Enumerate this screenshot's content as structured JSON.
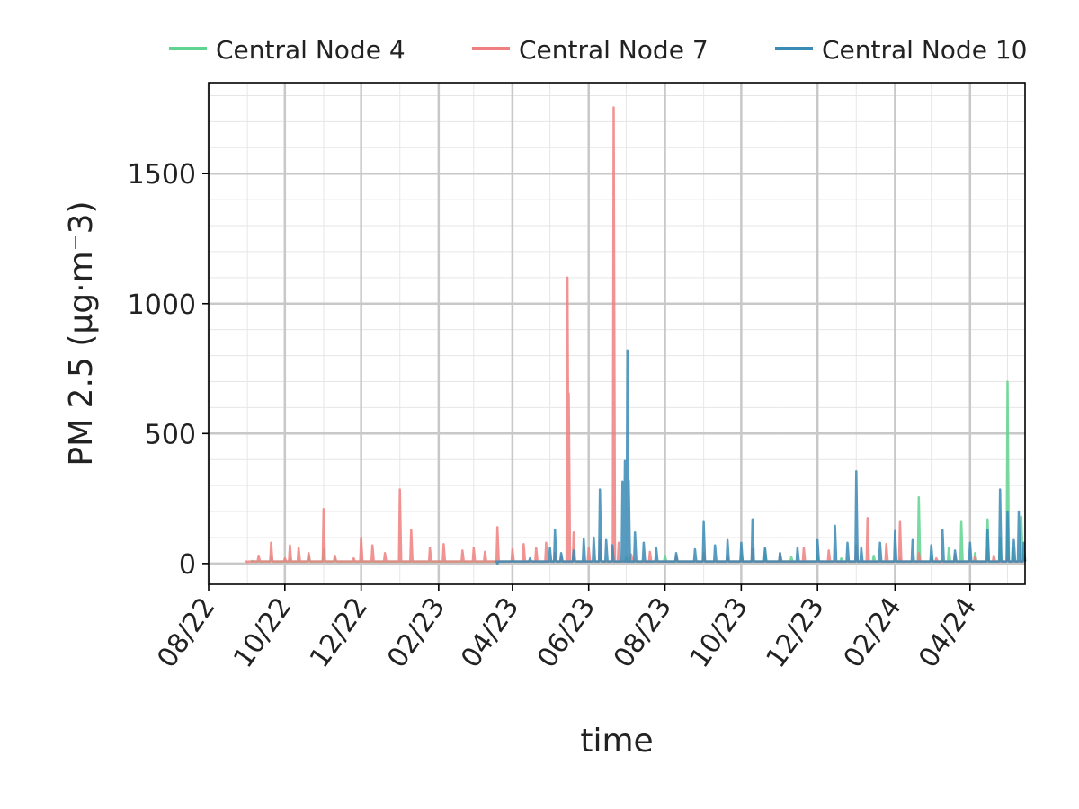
{
  "chart_data": {
    "type": "line",
    "title": "",
    "xlabel": "time",
    "ylabel": "PM 2.5 (µg·m⁻3)",
    "x_ticks": [
      "08/22",
      "10/22",
      "12/22",
      "02/23",
      "04/23",
      "06/23",
      "08/23",
      "10/23",
      "12/23",
      "02/24",
      "04/24"
    ],
    "y_ticks": [
      0,
      500,
      1000,
      1500
    ],
    "xlim": [
      "2022-08-01",
      "2024-05-15"
    ],
    "ylim": [
      -80,
      1850
    ],
    "grid": true,
    "legend_position": "top",
    "series": [
      {
        "name": "Central Node 4",
        "color": "#5fd38f",
        "points": [
          [
            "2022-09-05",
            10
          ],
          [
            "2022-09-20",
            25
          ],
          [
            "2022-10-05",
            15
          ],
          [
            "2022-10-20",
            35
          ],
          [
            "2022-11-01",
            55
          ],
          [
            "2022-11-10",
            20
          ],
          [
            "2023-05-20",
            20
          ],
          [
            "2023-06-10",
            40
          ],
          [
            "2023-07-01",
            25
          ],
          [
            "2023-08-01",
            30
          ],
          [
            "2023-09-01",
            20
          ],
          [
            "2023-10-01",
            35
          ],
          [
            "2023-10-20",
            55
          ],
          [
            "2023-11-10",
            25
          ],
          [
            "2023-12-01",
            30
          ],
          [
            "2023-12-20",
            20
          ],
          [
            "2024-01-15",
            30
          ],
          [
            "2024-02-05",
            20
          ],
          [
            "2024-02-20",
            255
          ],
          [
            "2024-03-01",
            25
          ],
          [
            "2024-03-15",
            60
          ],
          [
            "2024-03-25",
            160
          ],
          [
            "2024-04-05",
            40
          ],
          [
            "2024-04-15",
            170
          ],
          [
            "2024-04-25",
            100
          ],
          [
            "2024-05-01",
            700
          ],
          [
            "2024-05-05",
            60
          ],
          [
            "2024-05-12",
            180
          ],
          [
            "2024-05-14",
            30
          ]
        ]
      },
      {
        "name": "Central Node 7",
        "color": "#f08080",
        "points": [
          [
            "2022-09-01",
            5
          ],
          [
            "2022-09-10",
            30
          ],
          [
            "2022-09-20",
            80
          ],
          [
            "2022-10-01",
            20
          ],
          [
            "2022-10-05",
            70
          ],
          [
            "2022-10-12",
            60
          ],
          [
            "2022-10-20",
            40
          ],
          [
            "2022-11-01",
            210
          ],
          [
            "2022-11-10",
            30
          ],
          [
            "2022-11-25",
            20
          ],
          [
            "2022-12-01",
            100
          ],
          [
            "2022-12-10",
            70
          ],
          [
            "2022-12-20",
            40
          ],
          [
            "2023-01-01",
            285
          ],
          [
            "2023-01-10",
            130
          ],
          [
            "2023-01-25",
            60
          ],
          [
            "2023-02-05",
            75
          ],
          [
            "2023-02-20",
            50
          ],
          [
            "2023-03-01",
            60
          ],
          [
            "2023-03-10",
            45
          ],
          [
            "2023-03-20",
            140
          ],
          [
            "2023-04-01",
            55
          ],
          [
            "2023-04-10",
            75
          ],
          [
            "2023-04-20",
            60
          ],
          [
            "2023-04-28",
            80
          ],
          [
            "2023-05-05",
            40
          ],
          [
            "2023-05-10",
            30
          ],
          [
            "2023-05-15",
            1100
          ],
          [
            "2023-05-16",
            655
          ],
          [
            "2023-05-20",
            120
          ],
          [
            "2023-06-01",
            60
          ],
          [
            "2023-06-10",
            90
          ],
          [
            "2023-06-21",
            1755
          ],
          [
            "2023-06-25",
            80
          ],
          [
            "2023-07-05",
            35
          ],
          [
            "2023-07-20",
            45
          ],
          [
            "2023-08-10",
            30
          ],
          [
            "2023-09-01",
            40
          ],
          [
            "2023-09-20",
            25
          ],
          [
            "2023-10-10",
            55
          ],
          [
            "2023-11-01",
            40
          ],
          [
            "2023-11-20",
            60
          ],
          [
            "2023-12-10",
            50
          ],
          [
            "2024-01-01",
            70
          ],
          [
            "2024-01-10",
            175
          ],
          [
            "2024-01-25",
            75
          ],
          [
            "2024-02-05",
            160
          ],
          [
            "2024-02-20",
            40
          ],
          [
            "2024-03-05",
            20
          ],
          [
            "2024-03-20",
            35
          ],
          [
            "2024-04-05",
            25
          ],
          [
            "2024-04-20",
            30
          ],
          [
            "2024-05-01",
            20
          ],
          [
            "2024-05-14",
            15
          ]
        ]
      },
      {
        "name": "Central Node 10",
        "color": "#3a8ab6",
        "points": [
          [
            "2023-03-20",
            0
          ],
          [
            "2023-04-01",
            10
          ],
          [
            "2023-04-15",
            20
          ],
          [
            "2023-05-01",
            60
          ],
          [
            "2023-05-05",
            130
          ],
          [
            "2023-05-10",
            40
          ],
          [
            "2023-05-20",
            50
          ],
          [
            "2023-05-28",
            95
          ],
          [
            "2023-06-05",
            100
          ],
          [
            "2023-06-10",
            285
          ],
          [
            "2023-06-15",
            90
          ],
          [
            "2023-06-20",
            70
          ],
          [
            "2023-06-28",
            315
          ],
          [
            "2023-06-30",
            395
          ],
          [
            "2023-07-01",
            200
          ],
          [
            "2023-07-02",
            820
          ],
          [
            "2023-07-03",
            320
          ],
          [
            "2023-07-08",
            120
          ],
          [
            "2023-07-15",
            80
          ],
          [
            "2023-07-25",
            60
          ],
          [
            "2023-08-10",
            40
          ],
          [
            "2023-08-25",
            55
          ],
          [
            "2023-09-01",
            160
          ],
          [
            "2023-09-10",
            70
          ],
          [
            "2023-09-20",
            90
          ],
          [
            "2023-10-01",
            80
          ],
          [
            "2023-10-10",
            170
          ],
          [
            "2023-10-20",
            60
          ],
          [
            "2023-11-01",
            40
          ],
          [
            "2023-11-15",
            60
          ],
          [
            "2023-12-01",
            90
          ],
          [
            "2023-12-15",
            145
          ],
          [
            "2023-12-25",
            80
          ],
          [
            "2024-01-01",
            355
          ],
          [
            "2024-01-05",
            60
          ],
          [
            "2024-01-20",
            80
          ],
          [
            "2024-02-01",
            125
          ],
          [
            "2024-02-15",
            90
          ],
          [
            "2024-03-01",
            70
          ],
          [
            "2024-03-10",
            130
          ],
          [
            "2024-03-20",
            50
          ],
          [
            "2024-04-01",
            80
          ],
          [
            "2024-04-15",
            130
          ],
          [
            "2024-04-25",
            285
          ],
          [
            "2024-05-01",
            200
          ],
          [
            "2024-05-06",
            90
          ],
          [
            "2024-05-10",
            200
          ],
          [
            "2024-05-14",
            80
          ]
        ]
      }
    ]
  }
}
